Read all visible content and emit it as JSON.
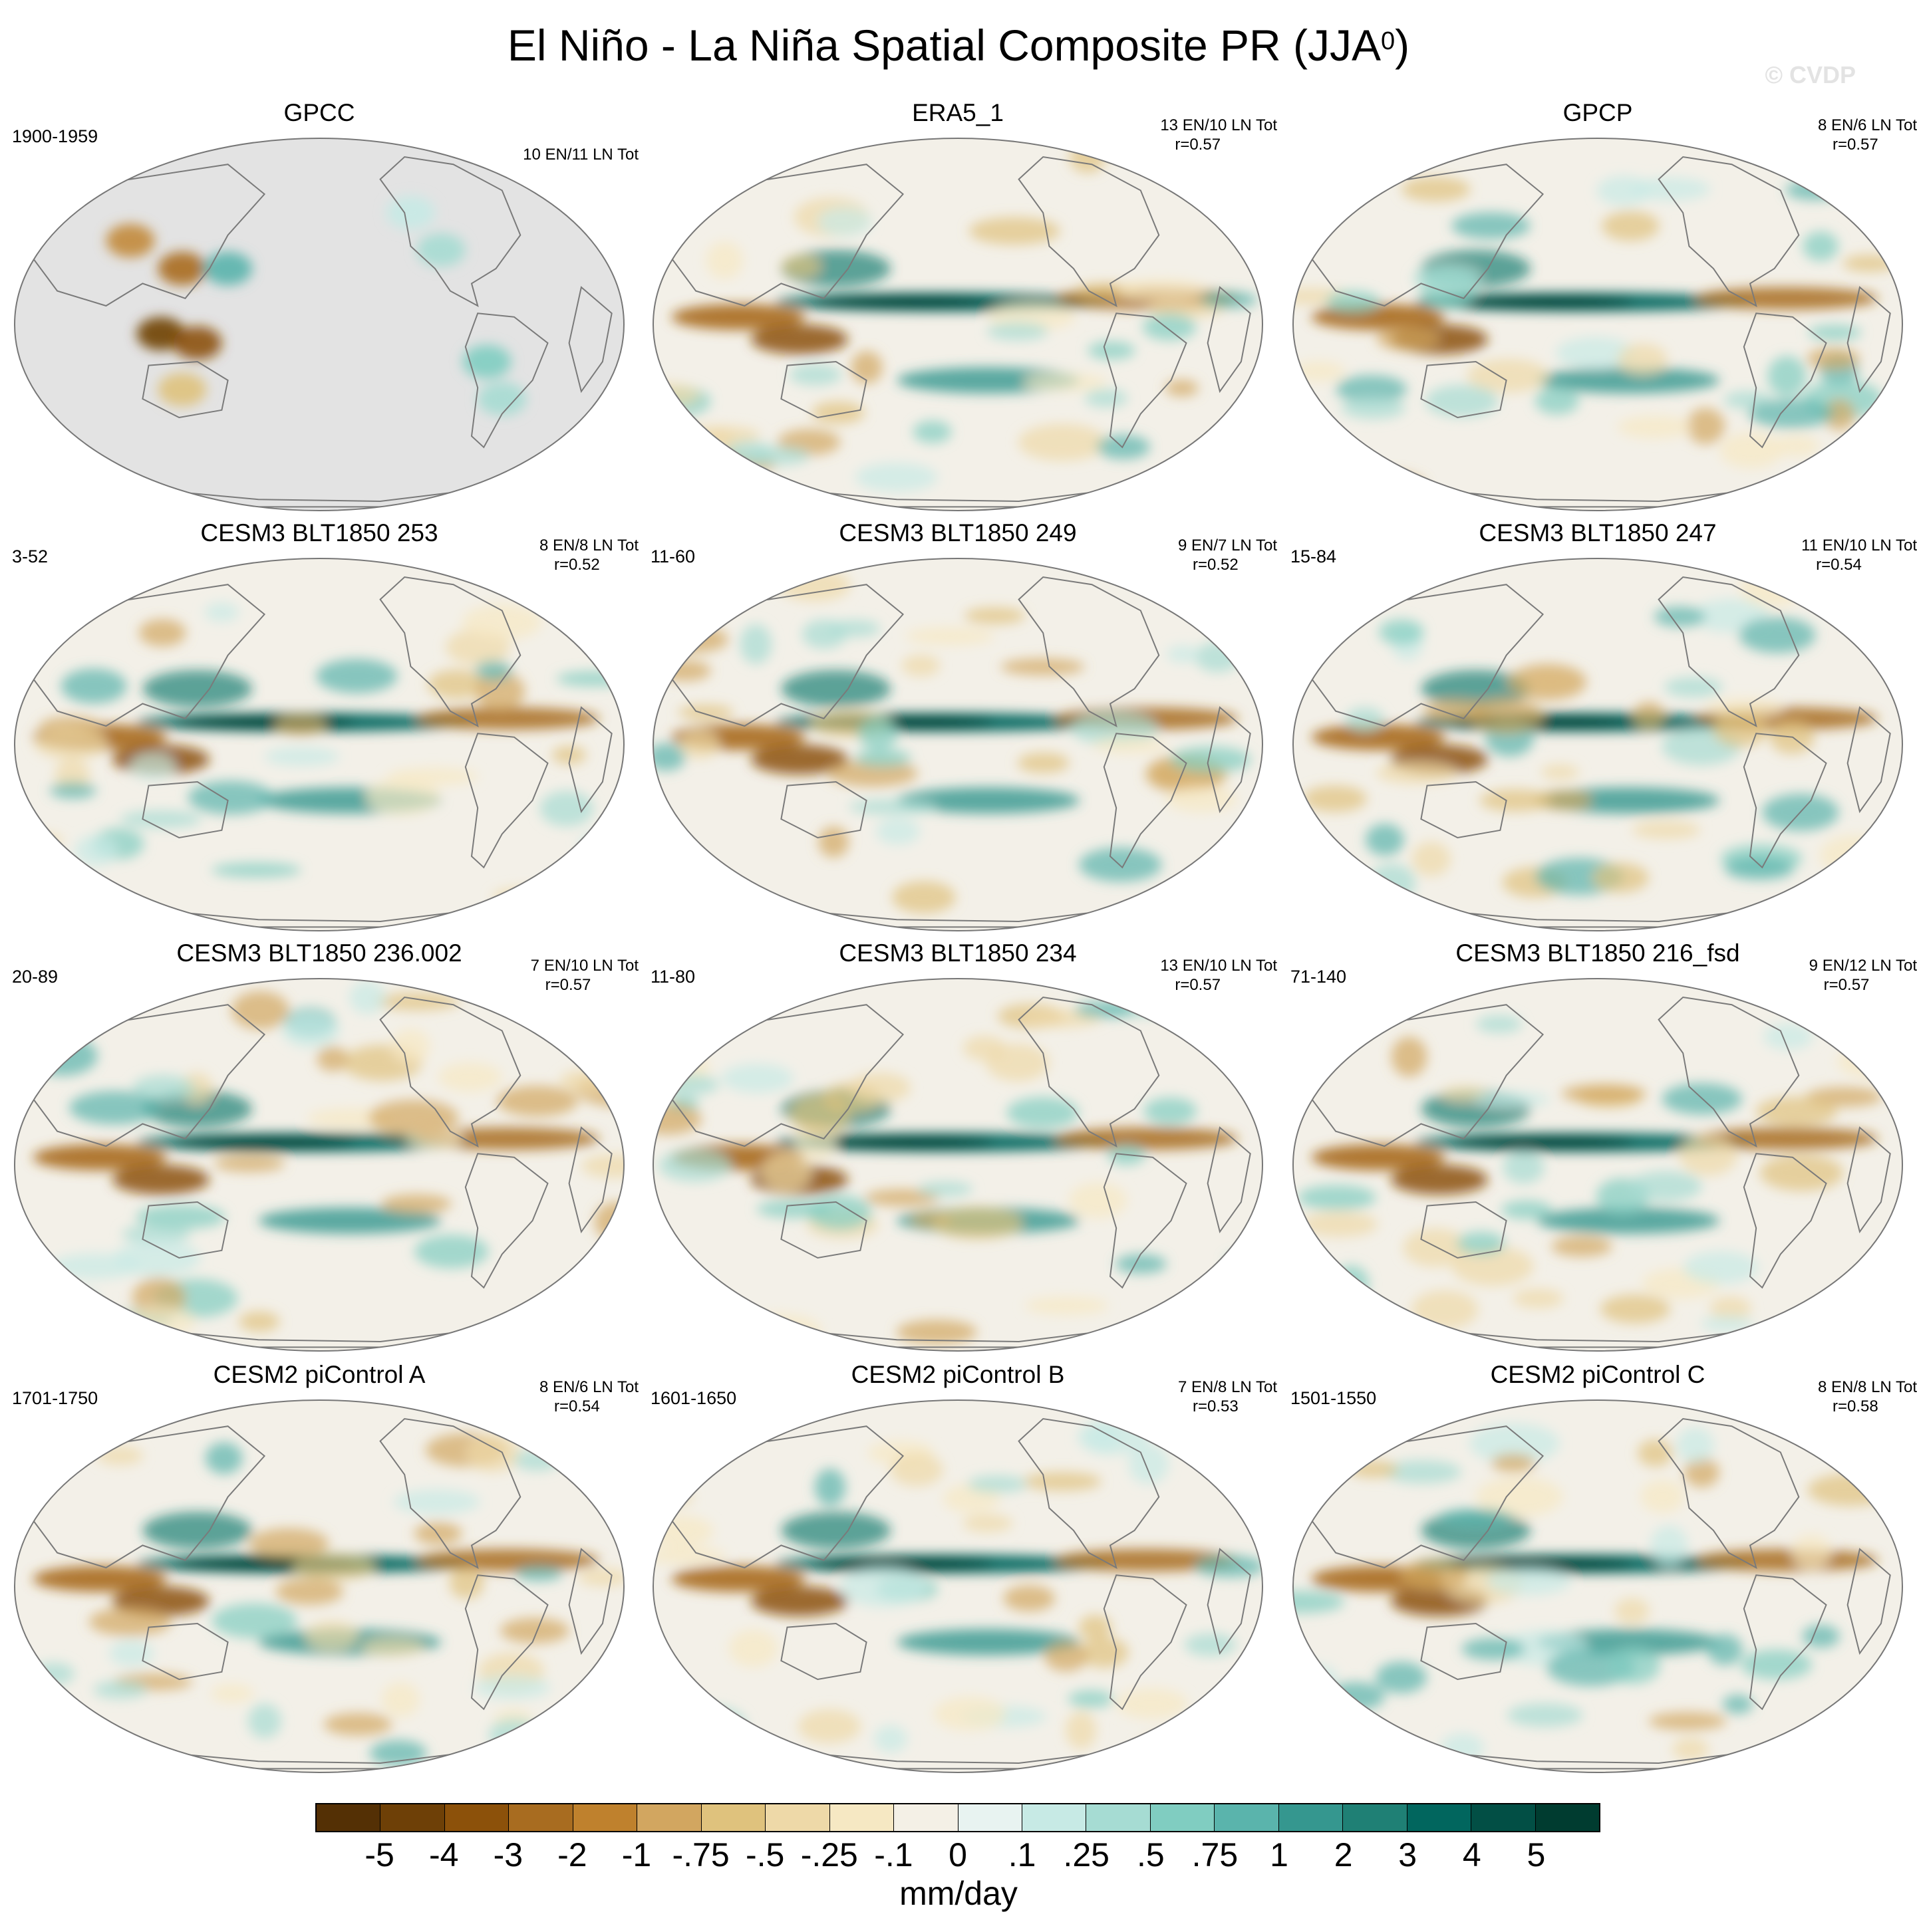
{
  "figure": {
    "title": "El Niño - La Niña Spatial Composite PR (JJA",
    "title_sup": "0",
    "title_close": ")",
    "watermark": "© CVDP"
  },
  "panels": [
    {
      "title": "GPCC",
      "period": "1900-1959",
      "counts": "10 EN/11 LN Tot",
      "corr": "",
      "kind": "obs-land"
    },
    {
      "title": "ERA5_1",
      "period": "",
      "counts": "13 EN/10 LN Tot",
      "corr": "r=0.57",
      "kind": "reanalysis"
    },
    {
      "title": "GPCP",
      "period": "",
      "counts": "8 EN/6 LN Tot",
      "corr": "r=0.57",
      "kind": "obs"
    },
    {
      "title": "CESM3 BLT1850 253",
      "period": "3-52",
      "counts": "8 EN/8 LN Tot",
      "corr": "r=0.52",
      "kind": "model"
    },
    {
      "title": "CESM3 BLT1850 249",
      "period": "11-60",
      "counts": "9 EN/7 LN Tot",
      "corr": "r=0.52",
      "kind": "model"
    },
    {
      "title": "CESM3 BLT1850 247",
      "period": "15-84",
      "counts": "11 EN/10 LN Tot",
      "corr": "r=0.54",
      "kind": "model"
    },
    {
      "title": "CESM3 BLT1850 236.002",
      "period": "20-89",
      "counts": "7 EN/10 LN Tot",
      "corr": "r=0.57",
      "kind": "model"
    },
    {
      "title": "CESM3 BLT1850 234",
      "period": "11-80",
      "counts": "13 EN/10 LN Tot",
      "corr": "r=0.57",
      "kind": "model"
    },
    {
      "title": "CESM3 BLT1850 216_fsd",
      "period": "71-140",
      "counts": "9 EN/12 LN Tot",
      "corr": "r=0.57",
      "kind": "model"
    },
    {
      "title": "CESM2 piControl A",
      "period": "1701-1750",
      "counts": "8 EN/6 LN Tot",
      "corr": "r=0.54",
      "kind": "model"
    },
    {
      "title": "CESM2 piControl B",
      "period": "1601-1650",
      "counts": "7 EN/8 LN Tot",
      "corr": "r=0.53",
      "kind": "model"
    },
    {
      "title": "CESM2 piControl C",
      "period": "1501-1550",
      "counts": "8 EN/8 LN Tot",
      "corr": "r=0.58",
      "kind": "model"
    }
  ],
  "colorbar": {
    "colors": [
      "#543005",
      "#6e4007",
      "#8c510a",
      "#a86c20",
      "#bf812d",
      "#d2a660",
      "#dfc27d",
      "#eed9a8",
      "#f6e8c3",
      "#f4f0e6",
      "#e8f3f1",
      "#c7eae5",
      "#a6dcd3",
      "#80cdc1",
      "#5ab4ac",
      "#35978f",
      "#1f8075",
      "#01665e",
      "#024f45",
      "#003c30"
    ],
    "tick_labels": [
      "-5",
      "-4",
      "-3",
      "-2",
      "-1",
      "-.75",
      "-.5",
      "-.25",
      "-.1",
      "0",
      ".1",
      ".25",
      ".5",
      ".75",
      "1",
      "2",
      "3",
      "4",
      "5"
    ],
    "units": "mm/day"
  }
}
